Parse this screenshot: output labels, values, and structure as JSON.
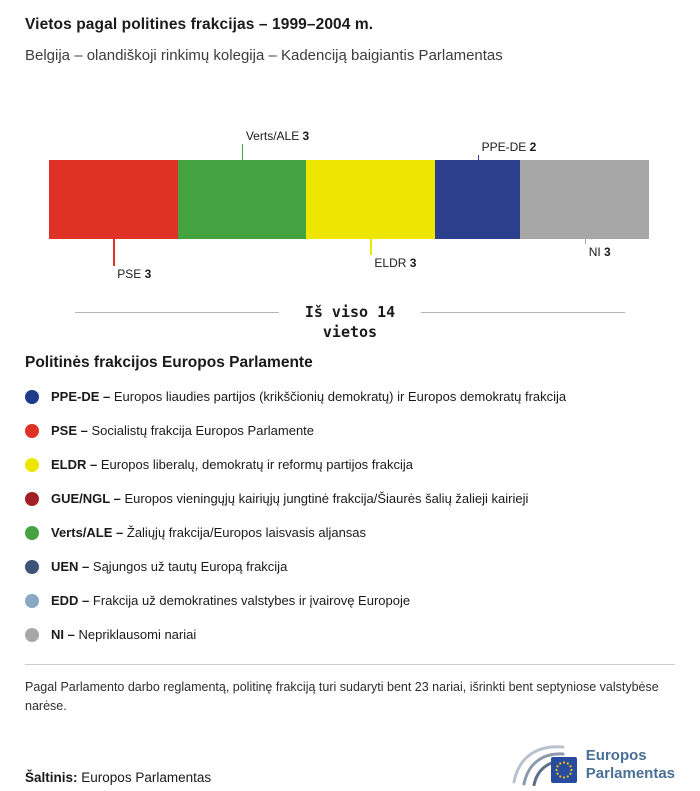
{
  "header": {
    "title": "Vietos pagal politines frakcijas – 1999–2004 m.",
    "subtitle": "Belgija – olandiškoji rinkimų kolegija – Kadenciją baigiantis Parlamentas"
  },
  "chart_data": {
    "type": "bar",
    "variant": "stacked-horizontal-single-bar",
    "title": "Vietos pagal politines frakcijas – 1999–2004 m.",
    "total_seats": 14,
    "segments": [
      {
        "name": "PSE",
        "value": 3,
        "color": "#e03127",
        "side": "below",
        "tier": 3
      },
      {
        "name": "Verts/ALE",
        "value": 3,
        "color": "#44a340",
        "side": "above",
        "tier": 2
      },
      {
        "name": "ELDR",
        "value": 3,
        "color": "#ece600",
        "side": "below",
        "tier": 2
      },
      {
        "name": "PPE-DE",
        "value": 2,
        "color": "#2b3f8d",
        "side": "above",
        "tier": 1
      },
      {
        "name": "NI",
        "value": 3,
        "color": "#a7a7a7",
        "side": "below",
        "tier": 1
      }
    ],
    "total_label": {
      "line1": "Iš viso 14",
      "line2": "vietos"
    }
  },
  "legend": {
    "title": "Politinės frakcijos Europos Parlamente",
    "items": [
      {
        "abbr": "PPE-DE –",
        "desc": "Europos liaudies partijos (krikščionių demokratų) ir Europos demokratų frakcija",
        "color": "#1f3a8a"
      },
      {
        "abbr": "PSE –",
        "desc": "Socialistų frakcija Europos Parlamente",
        "color": "#e03127"
      },
      {
        "abbr": "ELDR –",
        "desc": "Europos liberalų, demokratų ir reformų partijos frakcija",
        "color": "#ece600"
      },
      {
        "abbr": "GUE/NGL –",
        "desc": "Europos vieningųjų kairiųjų jungtinė frakcija/Šiaurės šalių žalieji kairieji",
        "color": "#a11f26"
      },
      {
        "abbr": "Verts/ALE –",
        "desc": "Žaliųjų frakcija/Europos laisvasis aljansas",
        "color": "#44a340"
      },
      {
        "abbr": "UEN –",
        "desc": "Sąjungos už tautų Europą frakcija",
        "color": "#3d5379"
      },
      {
        "abbr": "EDD –",
        "desc": "Frakcija už demokratines valstybes ir įvairovę Europoje",
        "color": "#8aa8c2"
      },
      {
        "abbr": "NI –",
        "desc": "Nepriklausomi nariai",
        "color": "#a7a7a7"
      }
    ]
  },
  "footnote": "Pagal Parlamento darbo reglamentą, politinę frakciją turi sudaryti bent 23 nariai, išrinkti bent septyniose valstybėse narėse.",
  "footer": {
    "source_label": "Šaltinis:",
    "source_value": "Europos Parlamentas",
    "logo_line1": "Europos",
    "logo_line2": "Parlamentas"
  }
}
